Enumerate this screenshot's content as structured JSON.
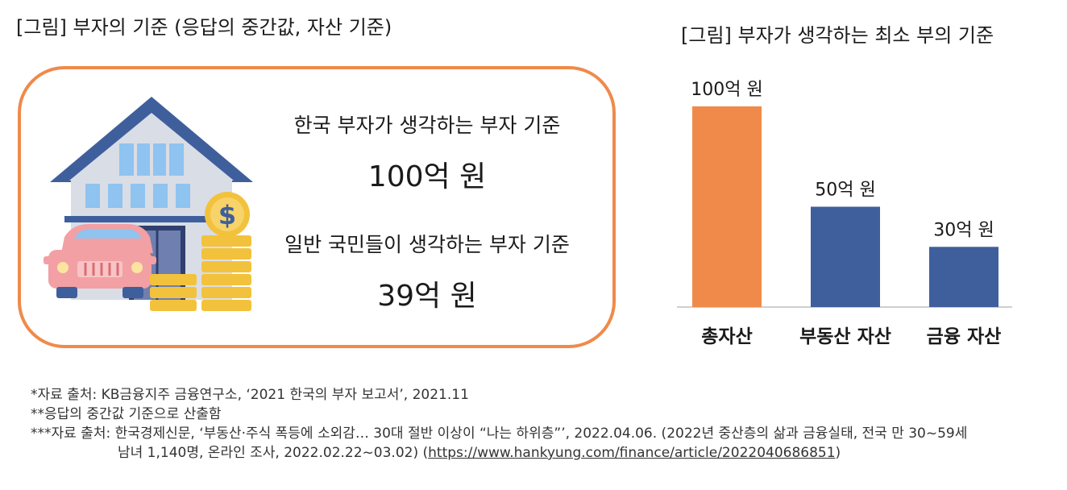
{
  "left_figure": {
    "title": "[그림] 부자의 기준 (응답의 중간값, 자산 기준)",
    "rich_label": "한국 부자가 생각하는 부자 기준",
    "rich_value": "100억 원",
    "public_label": "일반 국민들이 생각하는 부자 기준",
    "public_value": "39억 원"
  },
  "chart_data": {
    "type": "bar",
    "title": "[그림] 부자가 생각하는 최소 부의 기준",
    "categories": [
      "총자산",
      "부동산 자산",
      "금융 자산"
    ],
    "values": [
      100,
      50,
      30
    ],
    "value_labels": [
      "100억 원",
      "50억 원",
      "30억 원"
    ],
    "bar_colors": [
      "#ef8a4a",
      "#3f5f9c",
      "#3f5f9c"
    ],
    "ylim": [
      0,
      100
    ],
    "grid": false,
    "xlabel": "",
    "ylabel": ""
  },
  "footnotes": {
    "line1": "*자료 출처: KB금융지주 금융연구소, ‘2021 한국의 부자 보고서’, 2021.11",
    "line2": "**응답의 중간값 기준으로 산출함",
    "line3": "***자료 출처: 한국경제신문, ‘부동산·주식 폭등에 소외감… 30대 절반 이상이 “나는 하위층”’, 2022.04.06. (2022년 중산층의 삶과 금융실태, 전국 만 30~59세",
    "line4_prefix": "남녀 1,140명, 온라인 조사, 2022.02.22~03.02) (",
    "line4_link": "https://www.hankyung.com/finance/article/2022040686851",
    "line4_suffix": ")"
  }
}
